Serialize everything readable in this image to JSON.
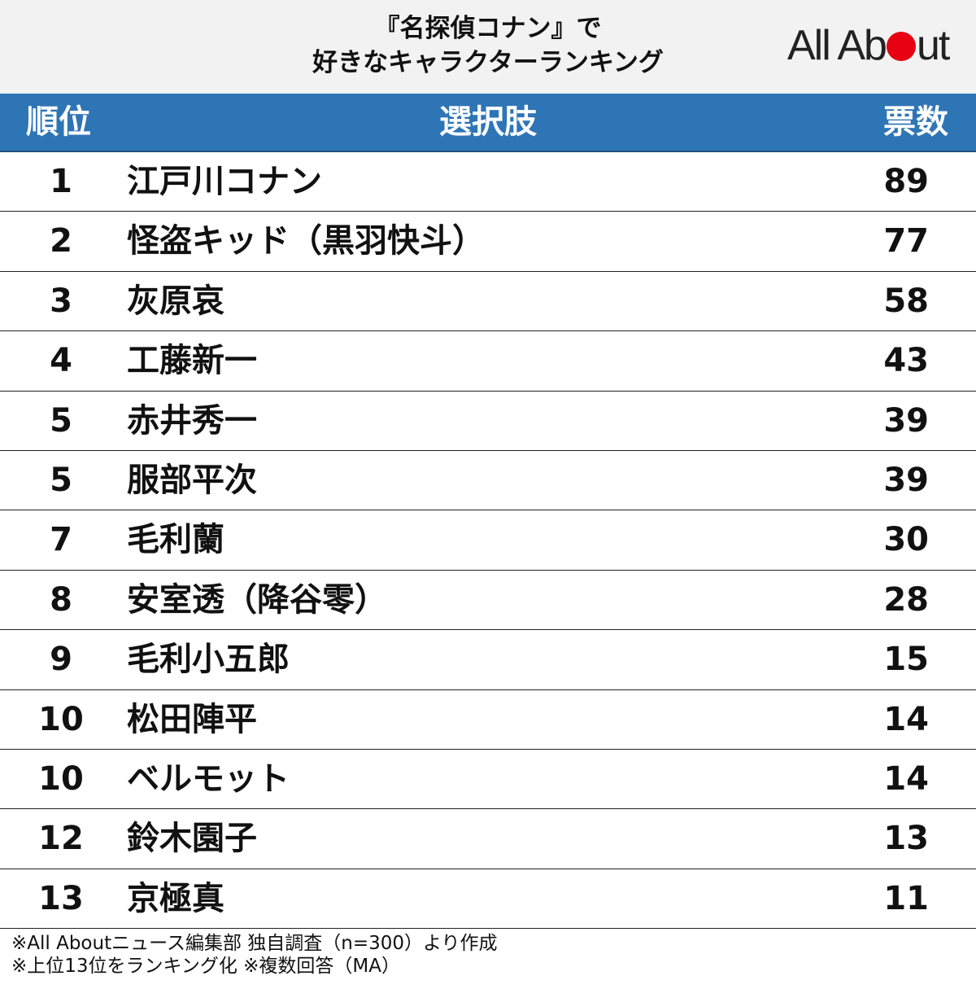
{
  "title": {
    "line1": "『名探偵コナン』で",
    "line2": "好きなキャラクターランキング"
  },
  "logo": {
    "before": "All Ab",
    "after": "ut",
    "dot_color": "#e60012"
  },
  "header": {
    "rank_label": "順位",
    "choice_label": "選択肢",
    "votes_label": "票数",
    "bg_color": "#2e75b6"
  },
  "chart_data": {
    "type": "table",
    "title": "『名探偵コナン』で好きなキャラクターランキング",
    "columns": [
      "順位",
      "選択肢",
      "票数"
    ],
    "rows": [
      {
        "rank": "1",
        "name": "江戸川コナン",
        "votes": "89"
      },
      {
        "rank": "2",
        "name": "怪盗キッド（黒羽快斗）",
        "votes": "77"
      },
      {
        "rank": "3",
        "name": "灰原哀",
        "votes": "58"
      },
      {
        "rank": "4",
        "name": "工藤新一",
        "votes": "43"
      },
      {
        "rank": "5",
        "name": "赤井秀一",
        "votes": "39"
      },
      {
        "rank": "5",
        "name": "服部平次",
        "votes": "39"
      },
      {
        "rank": "7",
        "name": "毛利蘭",
        "votes": "30"
      },
      {
        "rank": "8",
        "name": "安室透（降谷零）",
        "votes": "28"
      },
      {
        "rank": "9",
        "name": "毛利小五郎",
        "votes": "15"
      },
      {
        "rank": "10",
        "name": "松田陣平",
        "votes": "14"
      },
      {
        "rank": "10",
        "name": "ベルモット",
        "votes": "14"
      },
      {
        "rank": "12",
        "name": "鈴木園子",
        "votes": "13"
      },
      {
        "rank": "13",
        "name": "京極真",
        "votes": "11"
      }
    ]
  },
  "footer": {
    "line1": "※All Aboutニュース編集部 独自調査（n=300）より作成",
    "line2": "※上位13位をランキング化 ※複数回答（MA）"
  }
}
